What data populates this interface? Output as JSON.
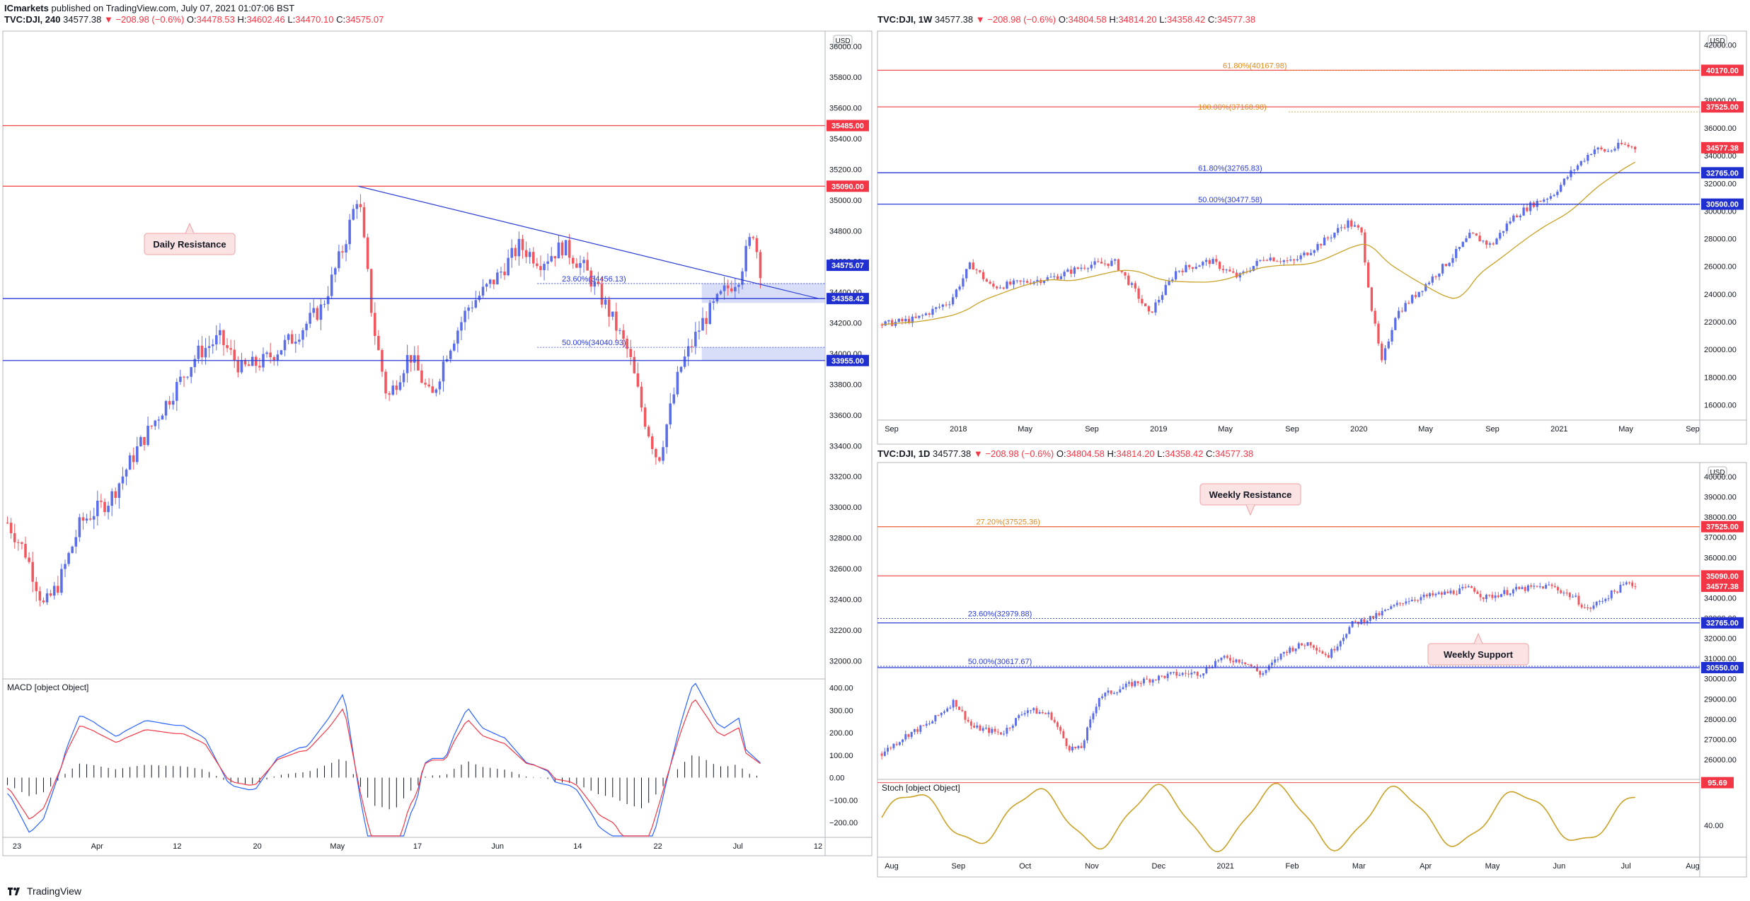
{
  "publish_line": {
    "author": "ICmarkets",
    "text": " published on TradingView.com, July 07, 2021 01:07:06 BST"
  },
  "left_header": {
    "symbol": "TVC:DJI, 240",
    "last": "34577.38",
    "change": "▼ −208.98 (−0.6%)",
    "o_label": "O:",
    "o": "34478.53",
    "h_label": "H:",
    "h": "34602.46",
    "l_label": "L:",
    "l": "34470.10",
    "c_label": "C:",
    "c": "34575.07"
  },
  "rt_header": {
    "symbol": "TVC:DJI, 1W",
    "last": "34577.38",
    "change": "▼ −208.98 (−0.6%)",
    "o_label": "O:",
    "o": "34804.58",
    "h_label": "H:",
    "h": "34814.20",
    "l_label": "L:",
    "l": "34358.42",
    "c_label": "C:",
    "c": "34577.38"
  },
  "rb_header": {
    "symbol": "TVC:DJI, 1D",
    "last": "34577.38",
    "change": "▼ −208.98 (−0.6%)",
    "o_label": "O:",
    "o": "34804.58",
    "h_label": "H:",
    "h": "34814.20",
    "l_label": "L:",
    "l": "34358.42",
    "c_label": "C:",
    "c": "34577.38"
  },
  "footer": {
    "brand": "TradingView"
  },
  "colors": {
    "up": "#5b6ee8",
    "down": "#f0575f",
    "blue_line": "#2a3bd6",
    "red_line": "#f05050",
    "ma": "#c9a227",
    "fib_orange": "#e08a1e",
    "fib_blue": "#2a3bd6",
    "zone": "#c8cff5"
  },
  "chart_data": [
    {
      "type": "candlestick",
      "panel": "left-4h",
      "currency": "USD",
      "ylim": [
        31900,
        36100
      ],
      "y_ticks": [
        32000,
        32200,
        32400,
        32600,
        32800,
        33000,
        33200,
        33400,
        33600,
        33800,
        34000,
        34200,
        34400,
        34600,
        34800,
        35000,
        35200,
        35400,
        35600,
        35800,
        36000
      ],
      "y_tick_labels": [
        "32000.00",
        "32200.00",
        "32400.00",
        "32600.00",
        "32800.00",
        "33000.00",
        "33200.00",
        "33400.00",
        "33600.00",
        "33800.00",
        "34000.00",
        "34200.00",
        "34400.00",
        "34600.00",
        "34800.00",
        "35000.00",
        "35200.00",
        "35400.00",
        "35600.00",
        "35800.00",
        "36000.00"
      ],
      "x_ticks": [
        "23",
        "Apr",
        "12",
        "20",
        "May",
        "17",
        "Jun",
        "14",
        "22",
        "Jul",
        "12"
      ],
      "key_points": [
        {
          "t": 0,
          "v": 32900
        },
        {
          "t": 5,
          "v": 32700
        },
        {
          "t": 10,
          "v": 32350
        },
        {
          "t": 14,
          "v": 32500
        },
        {
          "t": 20,
          "v": 32900
        },
        {
          "t": 28,
          "v": 33050
        },
        {
          "t": 36,
          "v": 33400
        },
        {
          "t": 44,
          "v": 33700
        },
        {
          "t": 52,
          "v": 34000
        },
        {
          "t": 58,
          "v": 34100
        },
        {
          "t": 64,
          "v": 33900
        },
        {
          "t": 70,
          "v": 33950
        },
        {
          "t": 78,
          "v": 34100
        },
        {
          "t": 86,
          "v": 34300
        },
        {
          "t": 92,
          "v": 34700
        },
        {
          "t": 96,
          "v": 35050
        },
        {
          "t": 100,
          "v": 34200
        },
        {
          "t": 104,
          "v": 33700
        },
        {
          "t": 110,
          "v": 34000
        },
        {
          "t": 116,
          "v": 33700
        },
        {
          "t": 120,
          "v": 34000
        },
        {
          "t": 126,
          "v": 34300
        },
        {
          "t": 134,
          "v": 34500
        },
        {
          "t": 140,
          "v": 34700
        },
        {
          "t": 146,
          "v": 34600
        },
        {
          "t": 152,
          "v": 34700
        },
        {
          "t": 158,
          "v": 34550
        },
        {
          "t": 164,
          "v": 34300
        },
        {
          "t": 170,
          "v": 34000
        },
        {
          "t": 174,
          "v": 33600
        },
        {
          "t": 178,
          "v": 33300
        },
        {
          "t": 184,
          "v": 33900
        },
        {
          "t": 190,
          "v": 34200
        },
        {
          "t": 196,
          "v": 34400
        },
        {
          "t": 200,
          "v": 34500
        },
        {
          "t": 204,
          "v": 34800
        },
        {
          "t": 206,
          "v": 34550
        }
      ],
      "horizontal_levels": [
        {
          "value": 35485,
          "label": "35485.00",
          "color": "red"
        },
        {
          "value": 35090,
          "label": "35090.00",
          "color": "red"
        },
        {
          "value": 34358.42,
          "label": "34358.42",
          "color": "blue"
        },
        {
          "value": 33955,
          "label": "33955.00",
          "color": "blue"
        }
      ],
      "last_price_label": "34575.07",
      "fib_levels": [
        {
          "label": "23.60%(34456.13)",
          "value": 34456.13
        },
        {
          "label": "50.00%(34040.93)",
          "value": 34040.93
        }
      ],
      "zones": [
        [
          34330,
          34456
        ],
        [
          33955,
          34041
        ]
      ],
      "trendline": [
        {
          "t": 96,
          "v": 35090
        },
        {
          "t": 222,
          "v": 34358
        }
      ],
      "annotations": [
        {
          "text": "Daily Resistance"
        }
      ],
      "indicator": {
        "name": "MACD [object Object]",
        "ylim": [
          -260,
          440
        ],
        "y_ticks": [
          400,
          300,
          200,
          100,
          0,
          -100,
          -200
        ],
        "y_tick_labels": [
          "400.00",
          "300.00",
          "200.00",
          "100.00",
          "0.00",
          "−100.00",
          "−200.00"
        ]
      }
    },
    {
      "type": "candlestick",
      "panel": "right-weekly",
      "currency": "USD",
      "ylim": [
        15000,
        43000
      ],
      "y_ticks": [
        16000,
        18000,
        20000,
        22000,
        24000,
        26000,
        28000,
        30000,
        32000,
        34000,
        36000,
        38000,
        40000,
        42000
      ],
      "y_tick_labels": [
        "16000.00",
        "18000.00",
        "20000.00",
        "22000.00",
        "24000.00",
        "26000.00",
        "28000.00",
        "30000.00",
        "32000.00",
        "34000.00",
        "36000.00",
        "38000.00",
        "40000.00",
        "42000.00"
      ],
      "x_ticks": [
        "Sep",
        "2018",
        "May",
        "Sep",
        "2019",
        "May",
        "Sep",
        "2020",
        "May",
        "Sep",
        "2021",
        "May",
        "Sep"
      ],
      "key_points": [
        {
          "t": 0,
          "v": 21800
        },
        {
          "t": 10,
          "v": 22200
        },
        {
          "t": 20,
          "v": 23500
        },
        {
          "t": 26,
          "v": 26200
        },
        {
          "t": 32,
          "v": 24500
        },
        {
          "t": 40,
          "v": 24800
        },
        {
          "t": 50,
          "v": 25200
        },
        {
          "t": 60,
          "v": 26100
        },
        {
          "t": 68,
          "v": 26300
        },
        {
          "t": 74,
          "v": 24200
        },
        {
          "t": 78,
          "v": 22500
        },
        {
          "t": 86,
          "v": 25700
        },
        {
          "t": 96,
          "v": 26400
        },
        {
          "t": 104,
          "v": 25200
        },
        {
          "t": 112,
          "v": 26700
        },
        {
          "t": 120,
          "v": 26300
        },
        {
          "t": 130,
          "v": 28000
        },
        {
          "t": 136,
          "v": 29200
        },
        {
          "t": 140,
          "v": 28500
        },
        {
          "t": 143,
          "v": 23000
        },
        {
          "t": 146,
          "v": 19000
        },
        {
          "t": 150,
          "v": 22500
        },
        {
          "t": 158,
          "v": 24500
        },
        {
          "t": 166,
          "v": 26500
        },
        {
          "t": 172,
          "v": 28300
        },
        {
          "t": 178,
          "v": 27500
        },
        {
          "t": 184,
          "v": 29500
        },
        {
          "t": 190,
          "v": 30500
        },
        {
          "t": 196,
          "v": 31200
        },
        {
          "t": 202,
          "v": 33000
        },
        {
          "t": 208,
          "v": 34500
        },
        {
          "t": 212,
          "v": 34300
        },
        {
          "t": 216,
          "v": 34800
        },
        {
          "t": 220,
          "v": 34577
        }
      ],
      "horizontal_levels": [
        {
          "value": 40170,
          "label": "40170.00",
          "color": "red"
        },
        {
          "value": 37525,
          "label": "37525.00",
          "color": "red"
        },
        {
          "value": 32765,
          "label": "32765.00",
          "color": "blue"
        },
        {
          "value": 30500,
          "label": "30500.00",
          "color": "blue"
        }
      ],
      "last_price_label": "34577.38",
      "fib_levels": [
        {
          "label": "61.80%(40167.98)",
          "value": 40167.98,
          "color": "orange"
        },
        {
          "label": "100.00%(37168.98)",
          "value": 37168.98,
          "color": "orange"
        },
        {
          "label": "61.80%(32765.83)",
          "value": 32765.83,
          "color": "blue"
        },
        {
          "label": "50.00%(30477.58)",
          "value": 30477.58,
          "color": "blue"
        }
      ],
      "moving_average": true
    },
    {
      "type": "candlestick",
      "panel": "right-daily",
      "currency": "USD",
      "ylim": [
        25300,
        40700
      ],
      "y_ticks": [
        26000,
        27000,
        28000,
        29000,
        30000,
        31000,
        32000,
        33000,
        34000,
        35000,
        36000,
        37000,
        38000,
        39000,
        40000
      ],
      "y_tick_labels": [
        "26000.00",
        "27000.00",
        "28000.00",
        "29000.00",
        "30000.00",
        "31000.00",
        "32000.00",
        "33000.00",
        "34000.00",
        "35000.00",
        "36000.00",
        "37000.00",
        "38000.00",
        "39000.00",
        "40000.00"
      ],
      "x_ticks": [
        "Aug",
        "Sep",
        "Oct",
        "Nov",
        "Dec",
        "2021",
        "Feb",
        "Mar",
        "Apr",
        "May",
        "Jun",
        "Jul",
        "Aug"
      ],
      "key_points": [
        {
          "t": 0,
          "v": 26300
        },
        {
          "t": 8,
          "v": 27200
        },
        {
          "t": 16,
          "v": 27800
        },
        {
          "t": 24,
          "v": 28900
        },
        {
          "t": 30,
          "v": 27600
        },
        {
          "t": 40,
          "v": 27300
        },
        {
          "t": 48,
          "v": 28500
        },
        {
          "t": 56,
          "v": 28200
        },
        {
          "t": 62,
          "v": 26600
        },
        {
          "t": 66,
          "v": 26500
        },
        {
          "t": 72,
          "v": 29100
        },
        {
          "t": 84,
          "v": 29800
        },
        {
          "t": 96,
          "v": 30200
        },
        {
          "t": 106,
          "v": 30300
        },
        {
          "t": 112,
          "v": 31000
        },
        {
          "t": 120,
          "v": 30900
        },
        {
          "t": 126,
          "v": 30200
        },
        {
          "t": 134,
          "v": 31400
        },
        {
          "t": 142,
          "v": 31800
        },
        {
          "t": 148,
          "v": 31100
        },
        {
          "t": 156,
          "v": 32700
        },
        {
          "t": 164,
          "v": 33100
        },
        {
          "t": 174,
          "v": 33900
        },
        {
          "t": 186,
          "v": 34200
        },
        {
          "t": 196,
          "v": 34500
        },
        {
          "t": 200,
          "v": 34000
        },
        {
          "t": 210,
          "v": 34400
        },
        {
          "t": 222,
          "v": 34600
        },
        {
          "t": 230,
          "v": 34000
        },
        {
          "t": 234,
          "v": 33400
        },
        {
          "t": 240,
          "v": 34000
        },
        {
          "t": 248,
          "v": 34800
        },
        {
          "t": 250,
          "v": 34577
        }
      ],
      "horizontal_levels": [
        {
          "value": 37525,
          "label": "37525.00",
          "color": "red"
        },
        {
          "value": 35090,
          "label": "35090.00",
          "color": "red"
        },
        {
          "value": 32765,
          "label": "32765.00",
          "color": "blue"
        },
        {
          "value": 30550,
          "label": "30550.00",
          "color": "blue"
        }
      ],
      "last_price_label": "34577.38",
      "fib_levels": [
        {
          "label": "27.20%(37525.36)",
          "value": 37525.36,
          "color": "orange"
        },
        {
          "label": "23.60%(32979.88)",
          "value": 32979.88,
          "color": "blue"
        },
        {
          "label": "50.00%(30617.67)",
          "value": 30617.67,
          "color": "blue"
        }
      ],
      "annotations": [
        {
          "text": "Weekly Resistance"
        },
        {
          "text": "Weekly Support"
        }
      ],
      "indicator": {
        "name": "Stoch [object Object]",
        "ylim": [
          0,
          100
        ],
        "y_ticks": [
          40
        ],
        "y_tick_labels": [
          "40.00"
        ],
        "last_label": "95.69"
      }
    }
  ]
}
